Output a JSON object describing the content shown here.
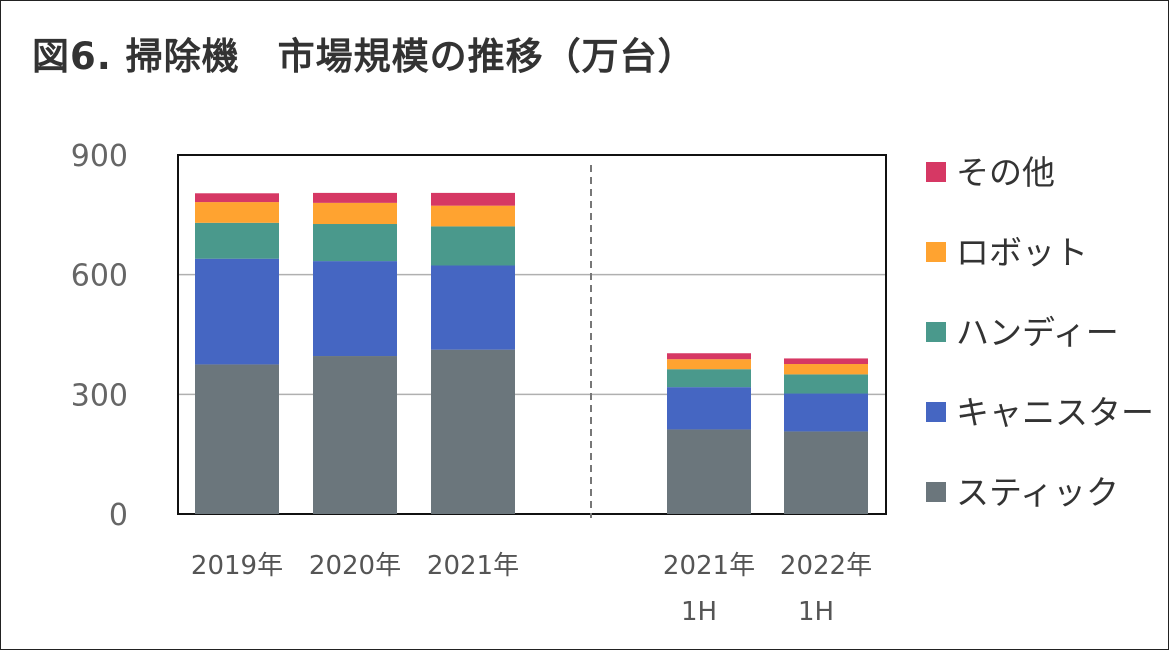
{
  "title": "図6. 掃除機　市場規模の推移（万台）",
  "chart_data": {
    "type": "bar",
    "stacked": true,
    "title": "図6. 掃除機　市場規模の推移（万台）",
    "ylim": [
      0,
      900
    ],
    "yticks": [
      0,
      300,
      600,
      900
    ],
    "grid": true,
    "legend_position": "right",
    "categories": [
      [
        "2019年"
      ],
      [
        "2020年"
      ],
      [
        "2021年"
      ],
      [
        "2021年",
        "1H"
      ],
      [
        "2022年",
        "1H"
      ]
    ],
    "group_separator_after": 2,
    "series": [
      {
        "name": "スティック",
        "color": "#6b767c",
        "values": [
          375,
          396,
          412,
          212,
          207
        ]
      },
      {
        "name": "キャニスター",
        "color": "#4566c2",
        "values": [
          265,
          238,
          211,
          106,
          95
        ]
      },
      {
        "name": "ハンディー",
        "color": "#4a998c",
        "values": [
          90,
          93,
          98,
          45,
          48
        ]
      },
      {
        "name": "ロボット",
        "color": "#ffa330",
        "values": [
          52,
          53,
          52,
          25,
          26
        ]
      },
      {
        "name": "その他",
        "color": "#d63864",
        "values": [
          22,
          25,
          32,
          15,
          14
        ]
      }
    ]
  }
}
